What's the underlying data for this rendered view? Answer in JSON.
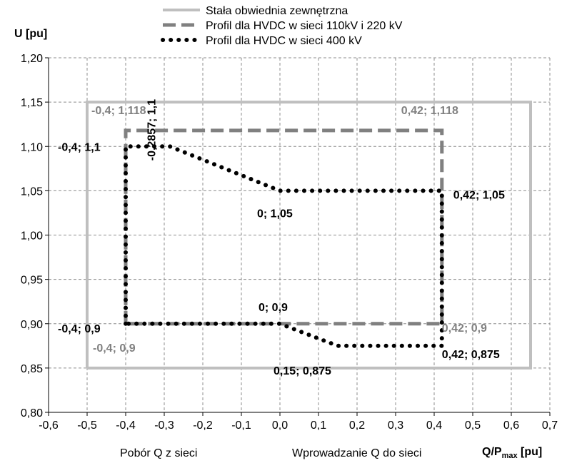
{
  "chart_data": {
    "type": "line",
    "title": "",
    "ylabel": "U [pu]",
    "xlabel_main": "Q/P",
    "xlabel_sub": "max",
    "xlabel_unit": " [pu]",
    "xlabel_left": "Pobór Q z sieci",
    "xlabel_right": "Wprowadzanie  Q do sieci",
    "xlim": [
      -0.6,
      0.7
    ],
    "ylim": [
      0.8,
      1.2
    ],
    "xticks": [
      "-0,6",
      "-0,5",
      "-0,4",
      "-0,3",
      "-0,2",
      "-0,1",
      "0,0",
      "0,1",
      "0,2",
      "0,3",
      "0,4",
      "0,5",
      "0,6",
      "0,7"
    ],
    "xtick_values": [
      -0.6,
      -0.5,
      -0.4,
      -0.3,
      -0.2,
      -0.1,
      0.0,
      0.1,
      0.2,
      0.3,
      0.4,
      0.5,
      0.6,
      0.7
    ],
    "yticks": [
      "0,80",
      "0,85",
      "0,90",
      "0,95",
      "1,00",
      "1,05",
      "1,10",
      "1,15",
      "1,20"
    ],
    "ytick_values": [
      0.8,
      0.85,
      0.9,
      0.95,
      1.0,
      1.05,
      1.1,
      1.15,
      1.2
    ],
    "grid": true,
    "legend_position": "top-center",
    "series": [
      {
        "name": "Stała obwiednia zewnętrzna",
        "style": "solid",
        "color": "#bfbfbf",
        "points": [
          [
            -0.5,
            0.85
          ],
          [
            -0.5,
            1.15
          ],
          [
            0.65,
            1.15
          ],
          [
            0.65,
            0.85
          ],
          [
            -0.5,
            0.85
          ]
        ]
      },
      {
        "name": "Profil dla HVDC w sieci 110kV i 220 kV",
        "style": "dashed",
        "color": "#808080",
        "points": [
          [
            -0.4,
            0.9
          ],
          [
            -0.4,
            1.118
          ],
          [
            0.42,
            1.118
          ],
          [
            0.42,
            0.9
          ],
          [
            -0.4,
            0.9
          ]
        ]
      },
      {
        "name": "Profil dla HVDC w sieci 400 kV",
        "style": "dotted",
        "color": "#000000",
        "points": [
          [
            -0.4,
            0.9
          ],
          [
            -0.4,
            1.1
          ],
          [
            -0.2857,
            1.1
          ],
          [
            0.0,
            1.05
          ],
          [
            0.42,
            1.05
          ],
          [
            0.42,
            0.875
          ],
          [
            0.15,
            0.875
          ],
          [
            0.0,
            0.9
          ],
          [
            -0.4,
            0.9
          ]
        ]
      }
    ],
    "annotations": [
      {
        "text": "-0,4; 1,118",
        "x": -0.4,
        "y": 1.118,
        "color": "#808080"
      },
      {
        "text": "0,42; 1,118",
        "x": 0.42,
        "y": 1.118,
        "color": "#808080"
      },
      {
        "text": "-0,4; 1,1",
        "x": -0.4,
        "y": 1.1,
        "color": "#000000"
      },
      {
        "text": "-0,2857; 1,1",
        "x": -0.2857,
        "y": 1.1,
        "color": "#000000"
      },
      {
        "text": "0; 1,05",
        "x": 0.0,
        "y": 1.05,
        "color": "#000000"
      },
      {
        "text": "0,42; 1,05",
        "x": 0.42,
        "y": 1.05,
        "color": "#000000"
      },
      {
        "text": "0; 0,9",
        "x": 0.0,
        "y": 0.9,
        "color": "#000000"
      },
      {
        "text": "-0,4; 0,9",
        "x": -0.4,
        "y": 0.9,
        "color": "#000000"
      },
      {
        "text": "-0,4; 0,9",
        "x": -0.4,
        "y": 0.9,
        "color": "#808080"
      },
      {
        "text": "0,42; 0,9",
        "x": 0.42,
        "y": 0.9,
        "color": "#808080"
      },
      {
        "text": "0,42; 0,875",
        "x": 0.42,
        "y": 0.875,
        "color": "#000000"
      },
      {
        "text": "0,15; 0,875",
        "x": 0.15,
        "y": 0.875,
        "color": "#000000"
      }
    ]
  }
}
